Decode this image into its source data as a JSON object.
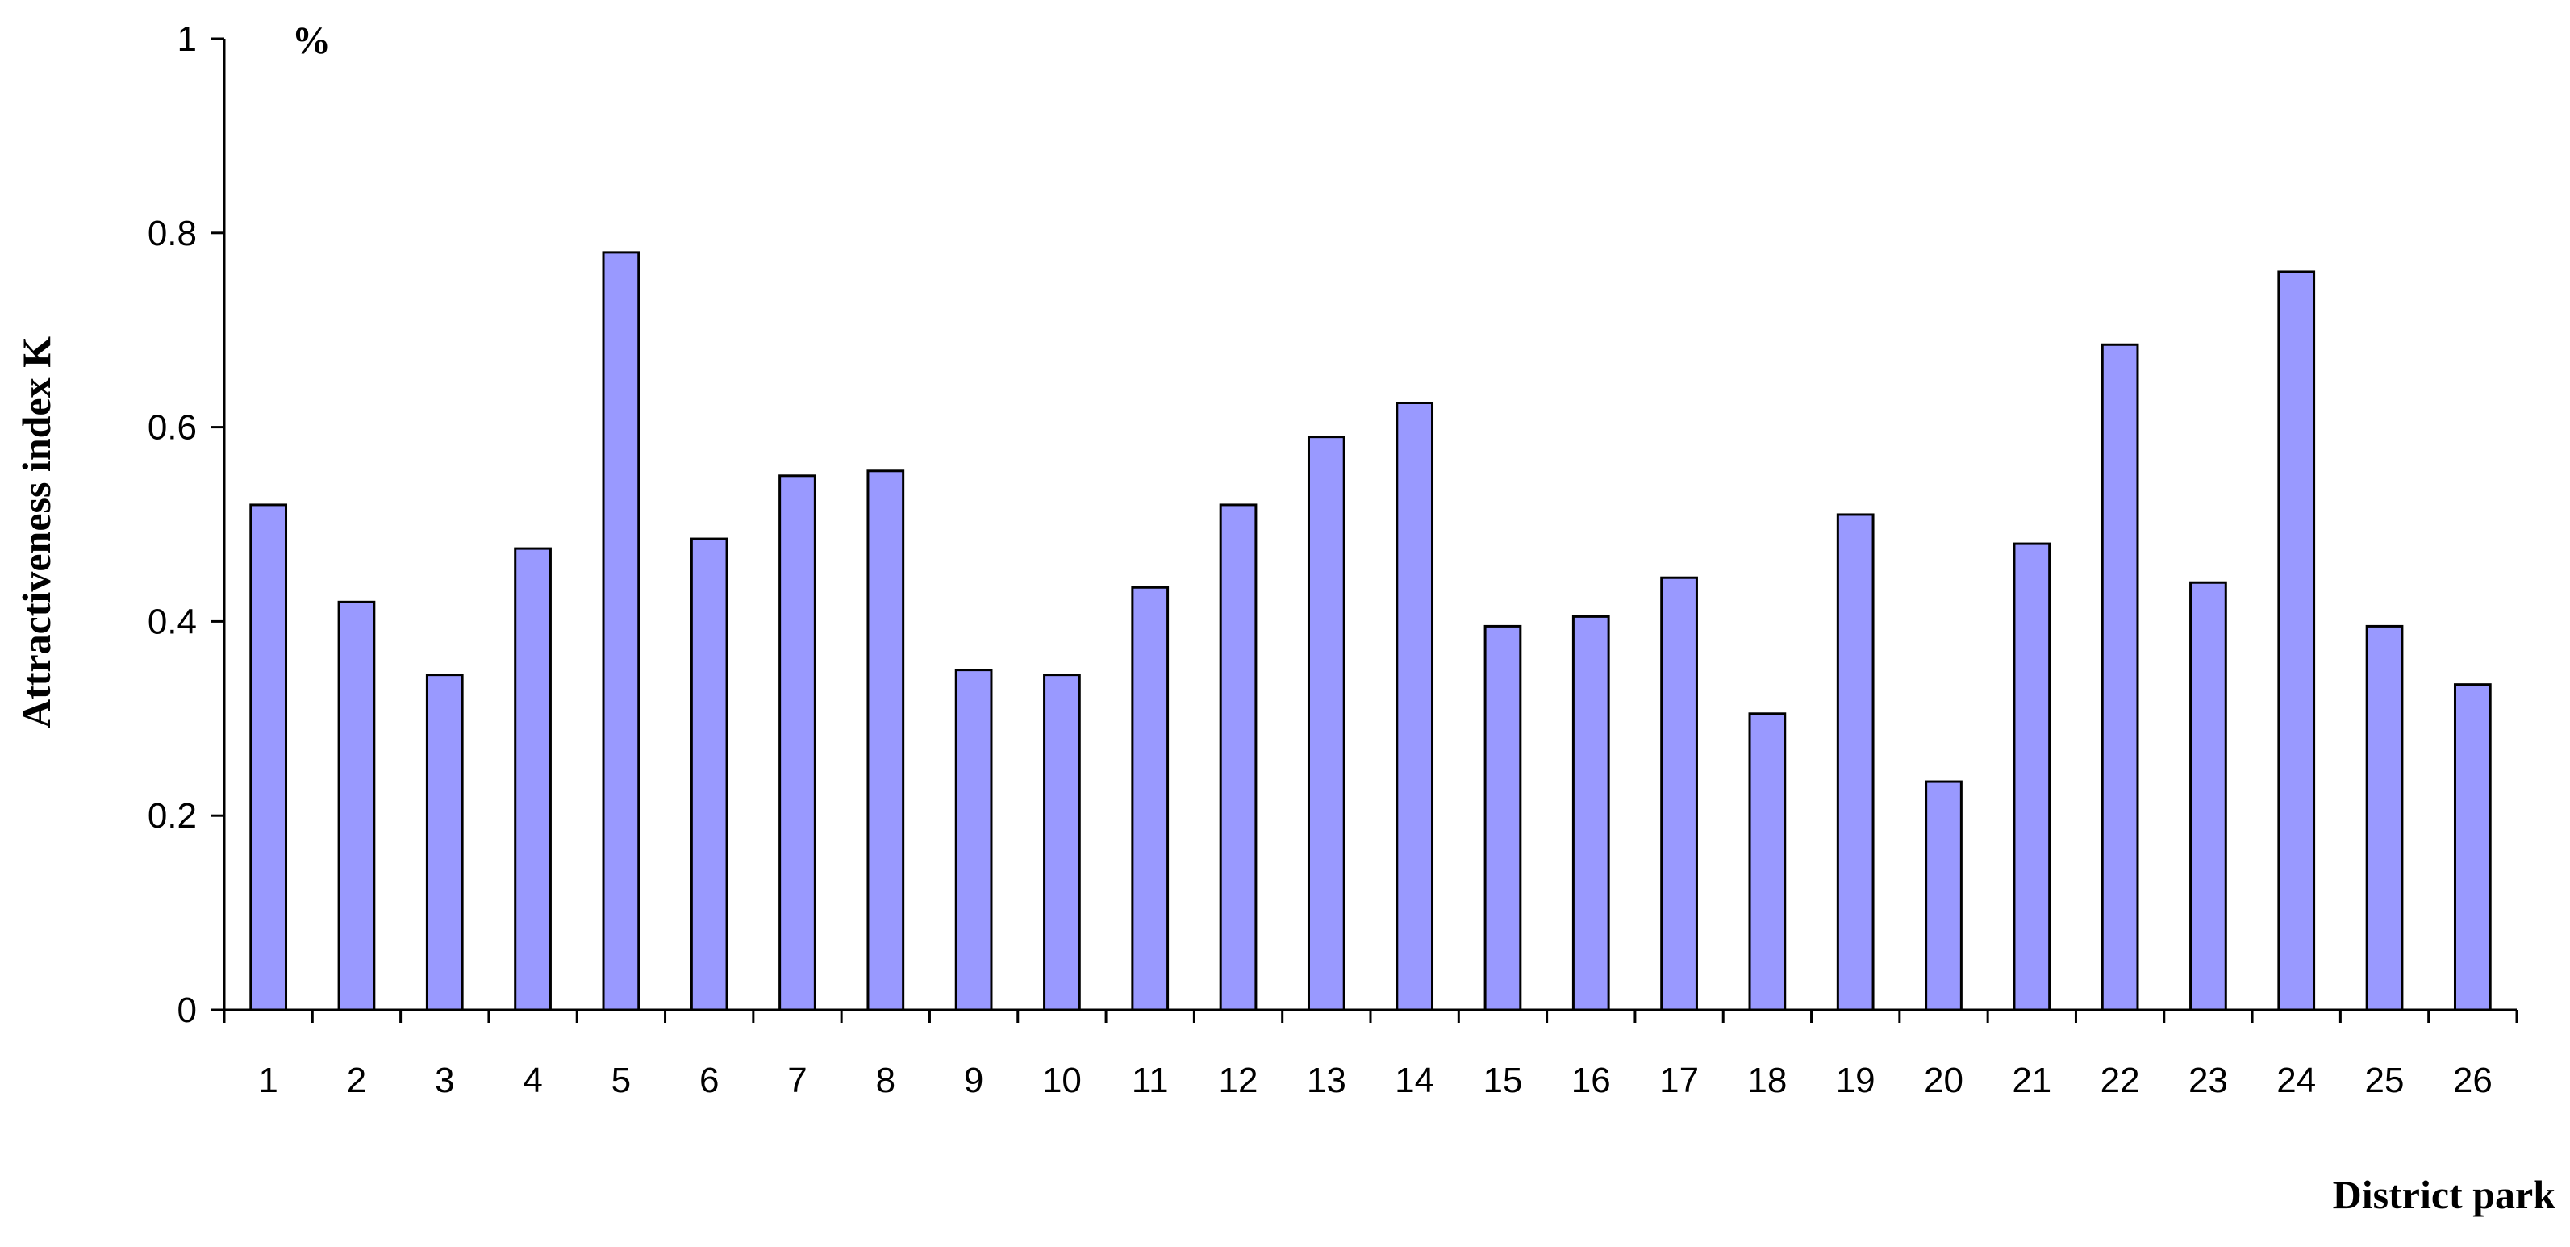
{
  "chart_data": {
    "type": "bar",
    "categories": [
      "1",
      "2",
      "3",
      "4",
      "5",
      "6",
      "7",
      "8",
      "9",
      "10",
      "11",
      "12",
      "13",
      "14",
      "15",
      "16",
      "17",
      "18",
      "19",
      "20",
      "21",
      "22",
      "23",
      "24",
      "25",
      "26"
    ],
    "values": [
      0.52,
      0.42,
      0.345,
      0.475,
      0.78,
      0.485,
      0.55,
      0.555,
      0.35,
      0.345,
      0.435,
      0.52,
      0.59,
      0.625,
      0.395,
      0.405,
      0.445,
      0.305,
      0.51,
      0.235,
      0.48,
      0.685,
      0.44,
      0.76,
      0.395,
      0.335
    ],
    "title": "",
    "xlabel": "District park",
    "ylabel": "Attractiveness index K",
    "unit_label": "%",
    "ylim": [
      0,
      1
    ],
    "yticks": [
      "0",
      "0.2",
      "0.4",
      "0.6",
      "0.8",
      "1"
    ],
    "grid": false,
    "legend": "none",
    "bar_color": "#9999ff",
    "bar_edge_color": "#000000"
  }
}
